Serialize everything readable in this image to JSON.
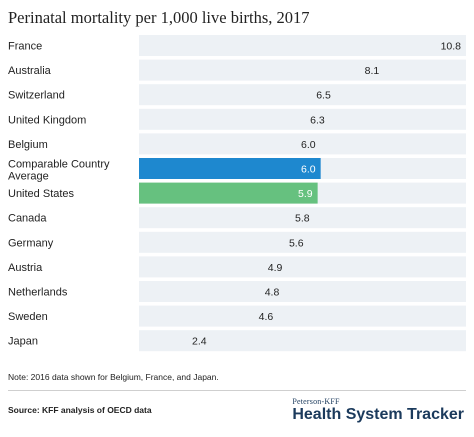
{
  "title": "Perinatal mortality per 1,000 live births, 2017",
  "note": "Note: 2016 data shown for Belgium, France, and Japan.",
  "source": "Source: KFF analysis of OECD data",
  "brand": {
    "small": "Peterson-KFF",
    "big": "Health System Tracker"
  },
  "colors": {
    "background_bar": "#edf1f5",
    "comparable": "#1e88cf",
    "us": "#66c17f",
    "label_dark": "#222222",
    "label_light": "#ffffff"
  },
  "chart_data": {
    "type": "bar",
    "orientation": "horizontal",
    "xlim": [
      0,
      10.8
    ],
    "categories": [
      "France",
      "Australia",
      "Switzerland",
      "United Kingdom",
      "Belgium",
      "Comparable Country Average",
      "United States",
      "Canada",
      "Germany",
      "Austria",
      "Netherlands",
      "Sweden",
      "Japan"
    ],
    "category_lines": [
      [
        "France"
      ],
      [
        "Australia"
      ],
      [
        "Switzerland"
      ],
      [
        "United Kingdom"
      ],
      [
        "Belgium"
      ],
      [
        "Comparable Country",
        "Average"
      ],
      [
        "United States"
      ],
      [
        "Canada"
      ],
      [
        "Germany"
      ],
      [
        "Austria"
      ],
      [
        "Netherlands"
      ],
      [
        "Sweden"
      ],
      [
        "Japan"
      ]
    ],
    "values": [
      10.8,
      8.1,
      6.5,
      6.3,
      6.0,
      6.0,
      5.9,
      5.8,
      5.6,
      4.9,
      4.8,
      4.6,
      2.4
    ],
    "value_labels": [
      "10.8",
      "8.1",
      "6.5",
      "6.3",
      "6.0",
      "6.0",
      "5.9",
      "5.8",
      "5.6",
      "4.9",
      "4.8",
      "4.6",
      "2.4"
    ],
    "highlight": {
      "Comparable Country Average": "comparable",
      "United States": "us"
    },
    "grid": false,
    "legend": "none"
  }
}
